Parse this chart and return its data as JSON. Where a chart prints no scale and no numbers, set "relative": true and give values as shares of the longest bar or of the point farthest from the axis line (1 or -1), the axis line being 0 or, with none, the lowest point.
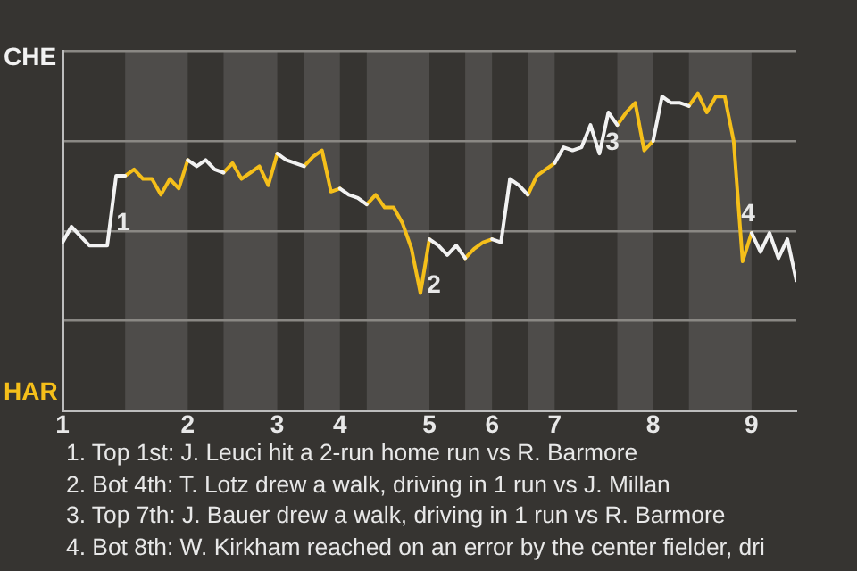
{
  "chart_data": {
    "type": "line",
    "relative": true,
    "grid": "y",
    "legend": false,
    "categories": [
      "1",
      null,
      null,
      null,
      null,
      null,
      null,
      null,
      null,
      null,
      null,
      null,
      null,
      null,
      "2",
      null,
      null,
      null,
      null,
      null,
      null,
      null,
      null,
      null,
      "3",
      null,
      null,
      null,
      null,
      null,
      null,
      "4",
      null,
      null,
      null,
      null,
      null,
      null,
      null,
      null,
      null,
      "5",
      null,
      null,
      null,
      null,
      null,
      null,
      "6",
      null,
      null,
      null,
      null,
      null,
      null,
      "7",
      null,
      null,
      null,
      null,
      null,
      null,
      null,
      null,
      null,
      null,
      "8",
      null,
      null,
      null,
      null,
      null,
      null,
      null,
      null,
      null,
      null,
      "9",
      null,
      null,
      null,
      null,
      null
    ],
    "series": [
      {
        "color": "#f2f2f2",
        "values": [
          0.53,
          0.58,
          0.55,
          0.52,
          0.52,
          0.52,
          0.74,
          0.74,
          null,
          null,
          null,
          null,
          null,
          null,
          0.79,
          0.77,
          0.79,
          0.76,
          0.75,
          null,
          null,
          null,
          null,
          null,
          0.81,
          0.79,
          0.78,
          0.77,
          null,
          null,
          null,
          0.7,
          0.68,
          0.67,
          0.65,
          null,
          null,
          null,
          null,
          null,
          null,
          0.54,
          0.52,
          0.49,
          0.52,
          0.48,
          null,
          null,
          0.54,
          0.53,
          0.73,
          0.71,
          0.68,
          null,
          null,
          0.78,
          0.83,
          0.82,
          0.83,
          0.9,
          0.81,
          0.94,
          0.9,
          null,
          null,
          null,
          0.85,
          0.99,
          0.97,
          0.97,
          0.96,
          null,
          null,
          null,
          null,
          null,
          null,
          0.56,
          0.5,
          0.56,
          0.48,
          0.54,
          0.41
        ]
      },
      {
        "color": "#f5bf1a",
        "values": [
          null,
          null,
          null,
          null,
          null,
          null,
          null,
          0.74,
          0.76,
          0.73,
          0.73,
          0.68,
          0.73,
          0.7,
          0.79,
          null,
          null,
          null,
          0.75,
          0.78,
          0.73,
          0.75,
          0.77,
          0.71,
          0.81,
          null,
          null,
          0.77,
          0.8,
          0.82,
          0.69,
          0.7,
          null,
          null,
          0.65,
          0.68,
          0.64,
          0.64,
          0.59,
          0.51,
          0.37,
          0.54,
          null,
          null,
          null,
          0.48,
          0.51,
          0.53,
          0.54,
          null,
          null,
          null,
          0.68,
          0.74,
          0.76,
          0.78,
          null,
          null,
          null,
          null,
          null,
          null,
          0.9,
          0.94,
          0.97,
          0.82,
          0.85,
          null,
          null,
          null,
          0.96,
          1,
          0.94,
          0.99,
          0.99,
          0.85,
          0.47,
          0.56,
          null,
          null,
          null,
          null,
          null
        ]
      }
    ],
    "annotations": [
      "CHE",
      "HAR",
      "1",
      "2",
      "3",
      "4",
      "1. Top 1st: J. Leuci hit a 2-run home run vs R. Barmore",
      "2. Bot 4th: T. Lotz drew a walk, driving in 1 run vs J. Millan",
      "3. Top 7th: J. Bauer drew a walk, driving in 1 run vs R. Barmore",
      "4. Bot 8th: W. Kirkham reached on an error by the center fielder, dri"
    ]
  }
}
